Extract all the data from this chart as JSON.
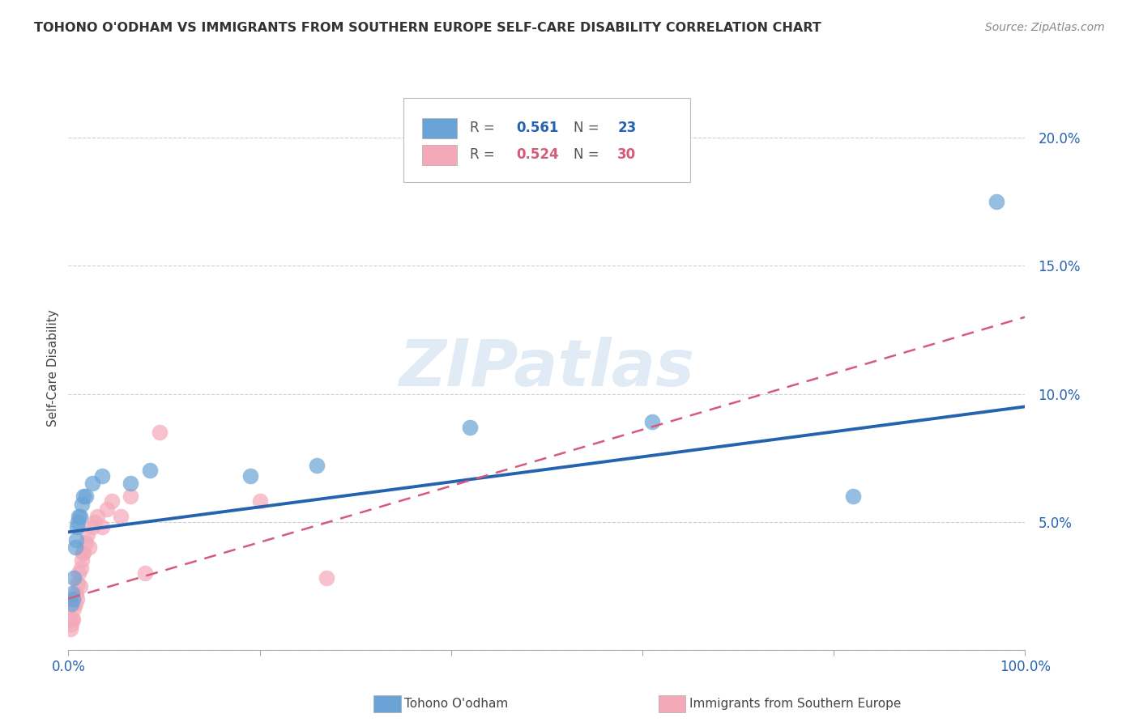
{
  "title": "TOHONO O'ODHAM VS IMMIGRANTS FROM SOUTHERN EUROPE SELF-CARE DISABILITY CORRELATION CHART",
  "source": "Source: ZipAtlas.com",
  "ylabel": "Self-Care Disability",
  "xlim": [
    0,
    1.0
  ],
  "ylim": [
    0,
    0.22
  ],
  "x_ticks": [
    0.0,
    0.2,
    0.4,
    0.6,
    0.8,
    1.0
  ],
  "y_ticks": [
    0.0,
    0.05,
    0.1,
    0.15,
    0.2
  ],
  "y_tick_labels": [
    "",
    "5.0%",
    "10.0%",
    "15.0%",
    "20.0%"
  ],
  "blue_color": "#6aa3d5",
  "pink_color": "#f4a9b8",
  "blue_line_color": "#2563b0",
  "pink_line_color": "#d45b7a",
  "legend_R1": "0.561",
  "legend_N1": "23",
  "legend_R2": "0.524",
  "legend_N2": "30",
  "blue_label": "Tohono O'odham",
  "pink_label": "Immigrants from Southern Europe",
  "blue_x": [
    0.003,
    0.004,
    0.005,
    0.006,
    0.007,
    0.008,
    0.009,
    0.01,
    0.011,
    0.012,
    0.014,
    0.016,
    0.018,
    0.025,
    0.035,
    0.065,
    0.085,
    0.19,
    0.26,
    0.42,
    0.61,
    0.82,
    0.97
  ],
  "blue_y": [
    0.018,
    0.022,
    0.02,
    0.028,
    0.04,
    0.043,
    0.048,
    0.05,
    0.052,
    0.052,
    0.057,
    0.06,
    0.06,
    0.065,
    0.068,
    0.065,
    0.07,
    0.068,
    0.072,
    0.087,
    0.089,
    0.06,
    0.175
  ],
  "pink_x": [
    0.002,
    0.003,
    0.004,
    0.005,
    0.006,
    0.007,
    0.008,
    0.009,
    0.01,
    0.011,
    0.012,
    0.013,
    0.014,
    0.015,
    0.016,
    0.018,
    0.02,
    0.022,
    0.025,
    0.028,
    0.03,
    0.035,
    0.04,
    0.045,
    0.055,
    0.065,
    0.08,
    0.095,
    0.2,
    0.27
  ],
  "pink_y": [
    0.008,
    0.01,
    0.012,
    0.012,
    0.016,
    0.018,
    0.022,
    0.02,
    0.026,
    0.03,
    0.025,
    0.032,
    0.035,
    0.038,
    0.038,
    0.042,
    0.045,
    0.04,
    0.048,
    0.05,
    0.052,
    0.048,
    0.055,
    0.058,
    0.052,
    0.06,
    0.03,
    0.085,
    0.058,
    0.028
  ],
  "blue_reg": [
    0.046,
    0.095
  ],
  "pink_reg": [
    0.02,
    0.13
  ],
  "watermark": "ZIPatlas",
  "background_color": "#ffffff",
  "grid_color": "#d0d0d0"
}
